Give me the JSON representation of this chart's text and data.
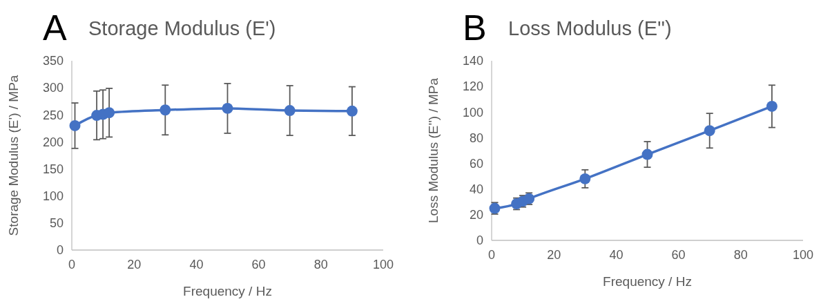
{
  "chart_data": [
    {
      "type": "line",
      "title": "Storage Modulus (E')",
      "xlabel": "Frequency / Hz",
      "ylabel": "Storage Modulus (E') / MPa",
      "annotations": [
        "A"
      ],
      "x": [
        1,
        8,
        10,
        12,
        30,
        50,
        70,
        90
      ],
      "xlim": [
        0,
        100
      ],
      "xticks": [
        0,
        20,
        40,
        60,
        80,
        100
      ],
      "ylim": [
        0,
        350
      ],
      "yticks": [
        0,
        50,
        100,
        150,
        200,
        250,
        300,
        350
      ],
      "grid": false,
      "marker": "circle",
      "line_style": "solid",
      "series": [
        {
          "color": "#4472c4",
          "values": [
            230,
            249,
            251,
            254,
            259,
            262,
            258,
            257
          ],
          "errors": [
            42,
            45,
            45,
            45,
            46,
            46,
            46,
            45
          ]
        }
      ]
    },
    {
      "type": "line",
      "title": "Loss Modulus (E'')",
      "xlabel": "Frequency / Hz",
      "ylabel": "Loss Modulus (E'') / MPa",
      "annotations": [
        "B"
      ],
      "x": [
        1,
        8,
        10,
        12,
        30,
        50,
        70,
        90
      ],
      "xlim": [
        0,
        100
      ],
      "xticks": [
        0,
        20,
        40,
        60,
        80,
        100
      ],
      "ylim": [
        0,
        140
      ],
      "yticks": [
        0,
        20,
        40,
        60,
        80,
        100,
        120,
        140
      ],
      "grid": false,
      "marker": "circle",
      "line_style": "solid",
      "series": [
        {
          "color": "#4472c4",
          "values": [
            25,
            28.5,
            30.5,
            32.5,
            48,
            67,
            85.5,
            104.5
          ],
          "errors": [
            4.5,
            4.5,
            4.5,
            4.5,
            7,
            10,
            13.5,
            16.5
          ]
        }
      ]
    }
  ]
}
